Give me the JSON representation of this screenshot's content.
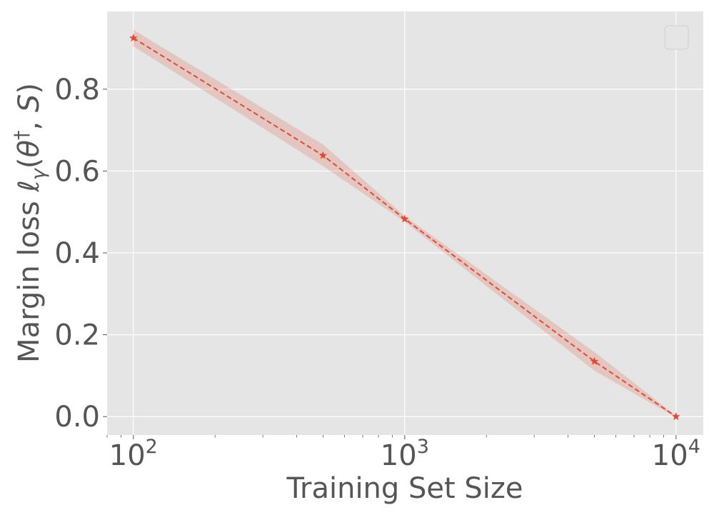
{
  "chart_data": {
    "type": "line",
    "title": "",
    "xlabel": "Training Set Size",
    "ylabel": {
      "prefix": "Margin loss ",
      "ell": "ℓ",
      "gamma": "γ",
      "open": "(",
      "theta": "θ",
      "dagger": "†",
      "sep": ", ",
      "set": "S",
      "close": ")"
    },
    "xscale": "log",
    "xlim": [
      80,
      12600
    ],
    "ylim": [
      -0.045,
      0.99
    ],
    "xticks": [
      {
        "value": 100,
        "base": "10",
        "exp": "2"
      },
      {
        "value": 1000,
        "base": "10",
        "exp": "3"
      },
      {
        "value": 10000,
        "base": "10",
        "exp": "4"
      }
    ],
    "yticks": [
      {
        "value": 0.0,
        "label": "0.0"
      },
      {
        "value": 0.2,
        "label": "0.2"
      },
      {
        "value": 0.4,
        "label": "0.4"
      },
      {
        "value": 0.6,
        "label": "0.6"
      },
      {
        "value": 0.8,
        "label": "0.8"
      }
    ],
    "grid": true,
    "legend": "top-right (empty)",
    "series": [
      {
        "x": [
          100,
          500,
          1000,
          5000,
          10000
        ],
        "y": [
          0.925,
          0.638,
          0.483,
          0.135,
          0.0
        ],
        "upper": [
          0.945,
          0.665,
          0.49,
          0.158,
          0.002
        ],
        "lower": [
          0.905,
          0.612,
          0.476,
          0.112,
          -0.002
        ],
        "color": "#e24a33",
        "fill": "#e24a33",
        "linestyle": "dashed",
        "marker": "star"
      }
    ]
  },
  "colors": {
    "plot_background": "#e5e5e5",
    "grid": "#ffffff",
    "text": "#555555"
  }
}
